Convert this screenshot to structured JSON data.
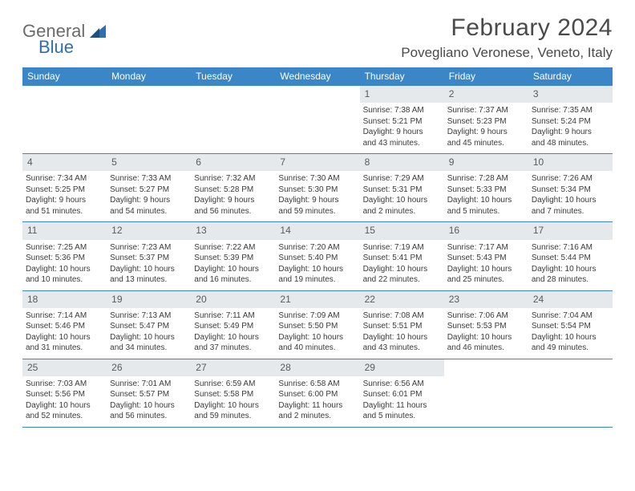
{
  "logo": {
    "word1": "General",
    "word2": "Blue"
  },
  "title": "February 2024",
  "location": "Povegliano Veronese, Veneto, Italy",
  "colors": {
    "header_bg": "#3b86c6",
    "header_text": "#ffffff",
    "daynum_bg": "#e6e9eb",
    "rule": "#3b86c6",
    "logo_gray": "#6b6b6b",
    "logo_blue": "#2f6fb0",
    "text": "#3a3a3a"
  },
  "day_names": [
    "Sunday",
    "Monday",
    "Tuesday",
    "Wednesday",
    "Thursday",
    "Friday",
    "Saturday"
  ],
  "weeks": [
    [
      null,
      null,
      null,
      null,
      {
        "n": "1",
        "sr": "Sunrise: 7:38 AM",
        "ss": "Sunset: 5:21 PM",
        "d1": "Daylight: 9 hours",
        "d2": "and 43 minutes."
      },
      {
        "n": "2",
        "sr": "Sunrise: 7:37 AM",
        "ss": "Sunset: 5:23 PM",
        "d1": "Daylight: 9 hours",
        "d2": "and 45 minutes."
      },
      {
        "n": "3",
        "sr": "Sunrise: 7:35 AM",
        "ss": "Sunset: 5:24 PM",
        "d1": "Daylight: 9 hours",
        "d2": "and 48 minutes."
      }
    ],
    [
      {
        "n": "4",
        "sr": "Sunrise: 7:34 AM",
        "ss": "Sunset: 5:25 PM",
        "d1": "Daylight: 9 hours",
        "d2": "and 51 minutes."
      },
      {
        "n": "5",
        "sr": "Sunrise: 7:33 AM",
        "ss": "Sunset: 5:27 PM",
        "d1": "Daylight: 9 hours",
        "d2": "and 54 minutes."
      },
      {
        "n": "6",
        "sr": "Sunrise: 7:32 AM",
        "ss": "Sunset: 5:28 PM",
        "d1": "Daylight: 9 hours",
        "d2": "and 56 minutes."
      },
      {
        "n": "7",
        "sr": "Sunrise: 7:30 AM",
        "ss": "Sunset: 5:30 PM",
        "d1": "Daylight: 9 hours",
        "d2": "and 59 minutes."
      },
      {
        "n": "8",
        "sr": "Sunrise: 7:29 AM",
        "ss": "Sunset: 5:31 PM",
        "d1": "Daylight: 10 hours",
        "d2": "and 2 minutes."
      },
      {
        "n": "9",
        "sr": "Sunrise: 7:28 AM",
        "ss": "Sunset: 5:33 PM",
        "d1": "Daylight: 10 hours",
        "d2": "and 5 minutes."
      },
      {
        "n": "10",
        "sr": "Sunrise: 7:26 AM",
        "ss": "Sunset: 5:34 PM",
        "d1": "Daylight: 10 hours",
        "d2": "and 7 minutes."
      }
    ],
    [
      {
        "n": "11",
        "sr": "Sunrise: 7:25 AM",
        "ss": "Sunset: 5:36 PM",
        "d1": "Daylight: 10 hours",
        "d2": "and 10 minutes."
      },
      {
        "n": "12",
        "sr": "Sunrise: 7:23 AM",
        "ss": "Sunset: 5:37 PM",
        "d1": "Daylight: 10 hours",
        "d2": "and 13 minutes."
      },
      {
        "n": "13",
        "sr": "Sunrise: 7:22 AM",
        "ss": "Sunset: 5:39 PM",
        "d1": "Daylight: 10 hours",
        "d2": "and 16 minutes."
      },
      {
        "n": "14",
        "sr": "Sunrise: 7:20 AM",
        "ss": "Sunset: 5:40 PM",
        "d1": "Daylight: 10 hours",
        "d2": "and 19 minutes."
      },
      {
        "n": "15",
        "sr": "Sunrise: 7:19 AM",
        "ss": "Sunset: 5:41 PM",
        "d1": "Daylight: 10 hours",
        "d2": "and 22 minutes."
      },
      {
        "n": "16",
        "sr": "Sunrise: 7:17 AM",
        "ss": "Sunset: 5:43 PM",
        "d1": "Daylight: 10 hours",
        "d2": "and 25 minutes."
      },
      {
        "n": "17",
        "sr": "Sunrise: 7:16 AM",
        "ss": "Sunset: 5:44 PM",
        "d1": "Daylight: 10 hours",
        "d2": "and 28 minutes."
      }
    ],
    [
      {
        "n": "18",
        "sr": "Sunrise: 7:14 AM",
        "ss": "Sunset: 5:46 PM",
        "d1": "Daylight: 10 hours",
        "d2": "and 31 minutes."
      },
      {
        "n": "19",
        "sr": "Sunrise: 7:13 AM",
        "ss": "Sunset: 5:47 PM",
        "d1": "Daylight: 10 hours",
        "d2": "and 34 minutes."
      },
      {
        "n": "20",
        "sr": "Sunrise: 7:11 AM",
        "ss": "Sunset: 5:49 PM",
        "d1": "Daylight: 10 hours",
        "d2": "and 37 minutes."
      },
      {
        "n": "21",
        "sr": "Sunrise: 7:09 AM",
        "ss": "Sunset: 5:50 PM",
        "d1": "Daylight: 10 hours",
        "d2": "and 40 minutes."
      },
      {
        "n": "22",
        "sr": "Sunrise: 7:08 AM",
        "ss": "Sunset: 5:51 PM",
        "d1": "Daylight: 10 hours",
        "d2": "and 43 minutes."
      },
      {
        "n": "23",
        "sr": "Sunrise: 7:06 AM",
        "ss": "Sunset: 5:53 PM",
        "d1": "Daylight: 10 hours",
        "d2": "and 46 minutes."
      },
      {
        "n": "24",
        "sr": "Sunrise: 7:04 AM",
        "ss": "Sunset: 5:54 PM",
        "d1": "Daylight: 10 hours",
        "d2": "and 49 minutes."
      }
    ],
    [
      {
        "n": "25",
        "sr": "Sunrise: 7:03 AM",
        "ss": "Sunset: 5:56 PM",
        "d1": "Daylight: 10 hours",
        "d2": "and 52 minutes."
      },
      {
        "n": "26",
        "sr": "Sunrise: 7:01 AM",
        "ss": "Sunset: 5:57 PM",
        "d1": "Daylight: 10 hours",
        "d2": "and 56 minutes."
      },
      {
        "n": "27",
        "sr": "Sunrise: 6:59 AM",
        "ss": "Sunset: 5:58 PM",
        "d1": "Daylight: 10 hours",
        "d2": "and 59 minutes."
      },
      {
        "n": "28",
        "sr": "Sunrise: 6:58 AM",
        "ss": "Sunset: 6:00 PM",
        "d1": "Daylight: 11 hours",
        "d2": "and 2 minutes."
      },
      {
        "n": "29",
        "sr": "Sunrise: 6:56 AM",
        "ss": "Sunset: 6:01 PM",
        "d1": "Daylight: 11 hours",
        "d2": "and 5 minutes."
      },
      null,
      null
    ]
  ]
}
